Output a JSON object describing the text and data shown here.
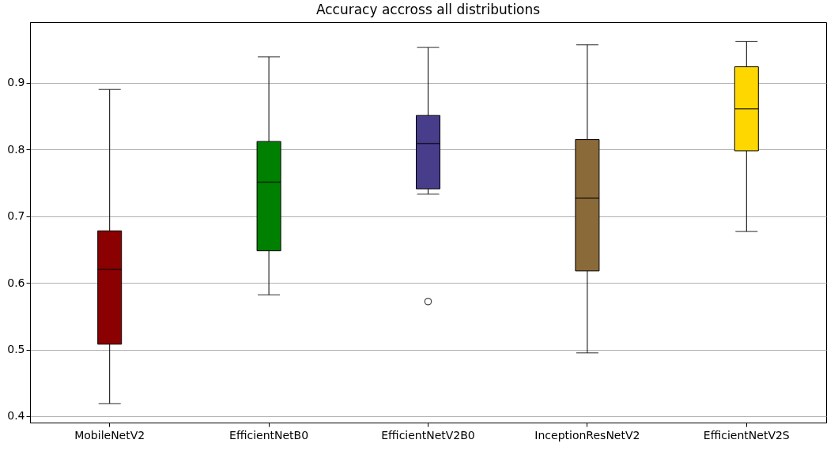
{
  "chart_data": {
    "type": "box",
    "title": "Accuracy accross all distributions",
    "categories": [
      "MobileNetV2",
      "EfficientNetB0",
      "EfficientNetV2B0",
      "InceptionResNetV2",
      "EfficientNetV2S"
    ],
    "colors": [
      "#8b0000",
      "#008000",
      "#483d8b",
      "#8b6a3a",
      "#ffd700"
    ],
    "boxes": [
      {
        "low": 0.419,
        "q1": 0.508,
        "median": 0.62,
        "q3": 0.678,
        "high": 0.89
      },
      {
        "low": 0.582,
        "q1": 0.648,
        "median": 0.751,
        "q3": 0.812,
        "high": 0.939
      },
      {
        "low": 0.733,
        "q1": 0.741,
        "median": 0.809,
        "q3": 0.851,
        "high": 0.953,
        "outliers": [
          0.572
        ]
      },
      {
        "low": 0.495,
        "q1": 0.618,
        "median": 0.727,
        "q3": 0.815,
        "high": 0.957
      },
      {
        "low": 0.677,
        "q1": 0.798,
        "median": 0.861,
        "q3": 0.924,
        "high": 0.962
      }
    ],
    "ylim": [
      0.3905,
      0.991
    ],
    "yticks": [
      0.4,
      0.5,
      0.6,
      0.7,
      0.8,
      0.9
    ],
    "grid": "y"
  }
}
